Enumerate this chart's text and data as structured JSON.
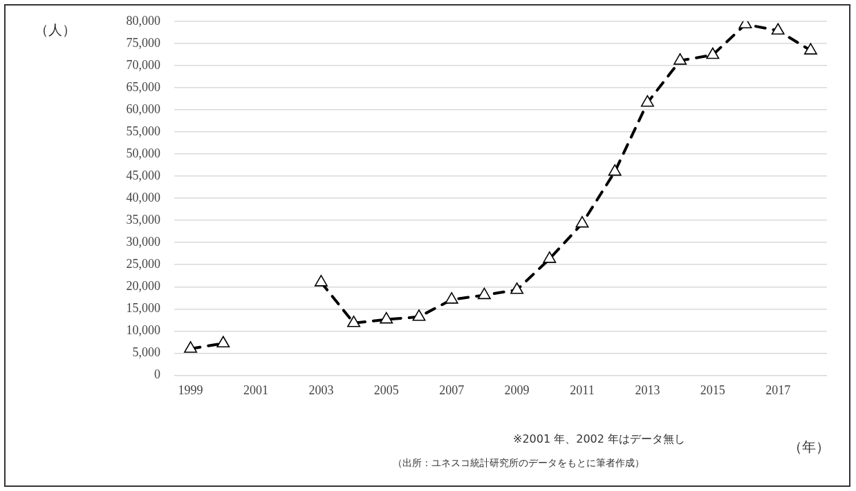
{
  "chart_data": {
    "type": "line",
    "ylabel": "（人）",
    "xlabel": "（年）",
    "annotations": [
      "※2001 年、2002 年はデータ無し",
      "（出所：ユネスコ統計研究所のデータをもとに筆者作成）"
    ],
    "categories": [
      "1999",
      null,
      "2001",
      null,
      "2003",
      null,
      "2005",
      null,
      "2007",
      null,
      "2009",
      null,
      "2011",
      null,
      "2013",
      null,
      "2015",
      null,
      "2017",
      null
    ],
    "series": [
      {
        "color": "#000000",
        "values": [
          6000,
          7200,
          null,
          null,
          21000,
          11800,
          12600,
          13200,
          17100,
          18100,
          19300,
          26300,
          34300,
          46000,
          61600,
          71100,
          72400,
          79300,
          77900,
          73400
        ]
      }
    ],
    "ylim": [
      0,
      80000
    ],
    "yticks": [
      0,
      {
        "value": 5000,
        "label": "5,000"
      },
      {
        "value": 10000,
        "label": "10,000"
      },
      {
        "value": 15000,
        "label": "15,000"
      },
      {
        "value": 20000,
        "label": "20,000"
      },
      {
        "value": 25000,
        "label": "25,000"
      },
      {
        "value": 30000,
        "label": "30,000"
      },
      {
        "value": 35000,
        "label": "35,000"
      },
      {
        "value": 40000,
        "label": "40,000"
      },
      {
        "value": 45000,
        "label": "45,000"
      },
      {
        "value": 50000,
        "label": "50,000"
      },
      {
        "value": 55000,
        "label": "55,000"
      },
      {
        "value": 60000,
        "label": "60,000"
      },
      {
        "value": 65000,
        "label": "65,000"
      },
      {
        "value": 70000,
        "label": "70,000"
      },
      {
        "value": 75000,
        "label": "75,000"
      },
      {
        "value": 80000,
        "label": "80,000"
      }
    ],
    "grid": "y",
    "marker": "triangle",
    "line_style": "dashed"
  }
}
